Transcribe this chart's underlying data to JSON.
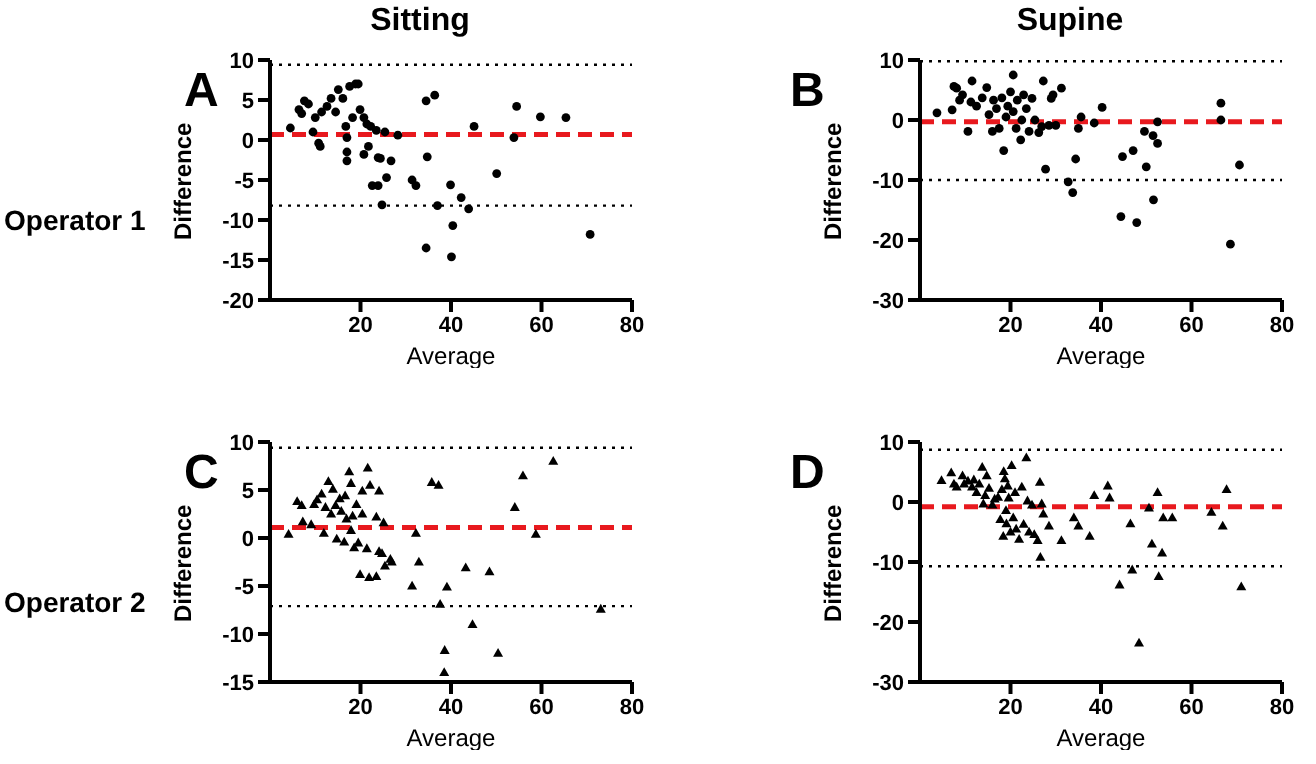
{
  "chart_data": [
    {
      "type": "scatter",
      "title": "Sitting",
      "subtitle": "A",
      "annotations": [
        "Operator 1"
      ],
      "xlabel": "Average",
      "ylabel": "Difference",
      "marker": "circle",
      "color": "#000000",
      "x": [
        4.5,
        6.4,
        7,
        7.6,
        8.5,
        9.5,
        10.75,
        11.1,
        10,
        11.4,
        12.6,
        13.5,
        14.5,
        15.1,
        16.1,
        16.75,
        17,
        17,
        17,
        17.6,
        18.25,
        18.9,
        19.5,
        19.9,
        20.75,
        20.75,
        21.4,
        21.75,
        22.25,
        22.6,
        23.5,
        23.9,
        23.9,
        24.4,
        24.75,
        25.4,
        25.75,
        26.75,
        28.25,
        31.4,
        32.25,
        34.5,
        34.5,
        34.75,
        36.4,
        37,
        39.9,
        40.1,
        40.4,
        42.25,
        43.9,
        45.1,
        50.1,
        53.9,
        54.5,
        59.75,
        65.4,
        70.75
      ],
      "values": [
        1.5,
        3.8,
        3.3,
        4.9,
        4.5,
        1,
        -0.4,
        -0.8,
        2.8,
        3.5,
        4.2,
        5.2,
        3.5,
        6.3,
        5.2,
        1.7,
        0.3,
        -1.5,
        -2.6,
        6.7,
        2.8,
        7,
        7,
        3.8,
        2.8,
        -1.8,
        2,
        -0.8,
        1.7,
        -5.7,
        1.2,
        -2.2,
        -5.7,
        -2.3,
        -8.1,
        1,
        -4.7,
        -2.6,
        0.6,
        -5,
        -5.7,
        4.9,
        -13.5,
        -2.1,
        5.6,
        -8.2,
        -5.6,
        -14.6,
        -10.7,
        -7.2,
        -8.6,
        1.7,
        -4.2,
        0.3,
        4.2,
        2.9,
        2.8,
        -11.8
      ],
      "xlim": [
        0,
        80
      ],
      "xticks": [
        20,
        40,
        60,
        80
      ],
      "ylim": [
        -20,
        10
      ],
      "yticks": [
        -20,
        -15,
        -10,
        -5,
        0,
        5,
        10
      ],
      "ref_lines": [
        {
          "axis": "y",
          "value": 0.7,
          "color": "#e8191e",
          "line_style": "dashed"
        },
        {
          "axis": "y",
          "value": 9.4,
          "color": "#000000",
          "line_style": "dotted"
        },
        {
          "axis": "y",
          "value": -8.2,
          "color": "#000000",
          "line_style": "dotted"
        }
      ]
    },
    {
      "type": "scatter",
      "title": "Supine",
      "subtitle": "B",
      "xlabel": "Average",
      "ylabel": "Difference",
      "marker": "circle",
      "color": "#000000",
      "x": [
        3.75,
        7.1,
        7.5,
        8.1,
        8.75,
        9.4,
        10.6,
        11.5,
        11.25,
        12.5,
        13.75,
        14.75,
        15.25,
        16,
        16.25,
        16.9,
        17.5,
        18.1,
        18.5,
        19,
        19.4,
        20,
        20.6,
        20.6,
        21.25,
        21.5,
        22.25,
        22.5,
        22.9,
        23.5,
        24.1,
        24.75,
        25.4,
        26.25,
        26.9,
        27.25,
        27.75,
        28.5,
        29,
        29.4,
        30,
        31.25,
        32.75,
        33.75,
        34.4,
        35,
        35.6,
        38.5,
        40.25,
        44.4,
        44.75,
        47.1,
        47.9,
        49.6,
        50,
        51.5,
        51.6,
        52.5,
        52.5,
        66.5,
        66.5,
        68.6,
        70.6
      ],
      "values": [
        1.2,
        1.7,
        5.6,
        5.3,
        3.3,
        4.2,
        -1.9,
        6.5,
        3,
        2.3,
        3.7,
        5.4,
        0.9,
        -1.9,
        3.3,
        1.9,
        -1.4,
        3.7,
        -5.1,
        0.5,
        2.3,
        4.7,
        7.5,
        1.4,
        -1.4,
        3.3,
        -3.3,
        0,
        4.2,
        1.9,
        -1.9,
        3.6,
        0,
        -2.1,
        -1.1,
        6.5,
        -8.2,
        -0.9,
        3.6,
        4.2,
        -0.9,
        5.3,
        -10.3,
        -12.1,
        -6.5,
        -1.4,
        0.5,
        -0.5,
        2.1,
        -16.1,
        -6.1,
        -5.1,
        -17.1,
        -1.9,
        -7.8,
        -2.6,
        -13.3,
        -3.9,
        -0.3,
        2.8,
        0,
        -20.7,
        -7.5
      ],
      "xlim": [
        0,
        80
      ],
      "xticks": [
        20,
        40,
        60,
        80
      ],
      "ylim": [
        -30,
        10
      ],
      "yticks": [
        -30,
        -20,
        -10,
        0,
        10
      ],
      "ref_lines": [
        {
          "axis": "y",
          "value": -0.3,
          "color": "#e8191e",
          "line_style": "dashed"
        },
        {
          "axis": "y",
          "value": 9.8,
          "color": "#000000",
          "line_style": "dotted"
        },
        {
          "axis": "y",
          "value": -10,
          "color": "#000000",
          "line_style": "dotted"
        }
      ]
    },
    {
      "type": "scatter",
      "subtitle": "C",
      "annotations": [
        "Operator 2"
      ],
      "xlabel": "Average",
      "ylabel": "Difference",
      "marker": "triangle",
      "color": "#000000",
      "x": [
        4.1,
        6,
        7,
        7.25,
        9.1,
        9.75,
        10.4,
        11.4,
        11.9,
        12.25,
        12.9,
        13.5,
        13.9,
        14.5,
        14.75,
        15.4,
        15.75,
        16.4,
        16.6,
        16.9,
        17.5,
        17.9,
        17.9,
        18.25,
        18.6,
        19.1,
        19.5,
        19.9,
        20.4,
        20.4,
        21.4,
        21.6,
        21.9,
        22.1,
        23.5,
        23.5,
        24.1,
        24.1,
        24.75,
        25.1,
        25.4,
        26.6,
        26.9,
        31.4,
        32.25,
        32.9,
        35.75,
        37.25,
        37.6,
        38.6,
        38.5,
        39.1,
        43.25,
        44.75,
        48.5,
        50.4,
        54.1,
        55.9,
        58.75,
        62.6,
        73.1
      ],
      "values": [
        0.4,
        3.8,
        3.4,
        1.7,
        1.4,
        3.5,
        4,
        4.6,
        0.5,
        3.2,
        5.9,
        2.5,
        5.1,
        3.4,
        -0.1,
        4.1,
        2.8,
        -0.4,
        4.4,
        2,
        6.9,
        5.7,
        0.8,
        2.3,
        -1,
        3.5,
        -0.5,
        -3.8,
        4.9,
        2.5,
        -1.1,
        7.3,
        -4.1,
        5.5,
        -4,
        2.2,
        4.9,
        -1.4,
        -1.6,
        1.6,
        -2.9,
        -2.2,
        -2.5,
        -5,
        0.5,
        -2.5,
        5.8,
        5.5,
        -6.9,
        -11.7,
        -14,
        -5.1,
        -3.1,
        -9,
        -3.5,
        -12,
        3.2,
        6.5,
        0.4,
        8,
        -7.4
      ],
      "xlim": [
        0,
        80
      ],
      "xticks": [
        20,
        40,
        60,
        80
      ],
      "ylim": [
        -15,
        10
      ],
      "yticks": [
        -15,
        -10,
        -5,
        0,
        5,
        10
      ],
      "ref_lines": [
        {
          "axis": "y",
          "value": 1.1,
          "color": "#e8191e",
          "line_style": "dashed"
        },
        {
          "axis": "y",
          "value": 9.4,
          "color": "#000000",
          "line_style": "dotted"
        },
        {
          "axis": "y",
          "value": -7.1,
          "color": "#000000",
          "line_style": "dotted"
        }
      ]
    },
    {
      "type": "scatter",
      "subtitle": "D",
      "xlabel": "Average",
      "ylabel": "Difference",
      "marker": "triangle",
      "color": "#000000",
      "x": [
        4.75,
        6.9,
        7.5,
        8.1,
        9.4,
        9.75,
        10.6,
        11.5,
        11.9,
        12.5,
        13.1,
        13.75,
        14,
        14.4,
        14.75,
        15.25,
        16,
        16.5,
        17.25,
        17.75,
        18.1,
        18.4,
        18.5,
        18.75,
        19,
        19.1,
        19.4,
        19.6,
        20,
        20.25,
        20.6,
        21,
        21.25,
        21.9,
        22.5,
        22.9,
        23.5,
        23.75,
        24.1,
        24.75,
        25.25,
        26,
        26.5,
        26.6,
        26.9,
        27.25,
        28.5,
        31.25,
        34,
        35,
        37.5,
        38.5,
        41.5,
        41.9,
        44.1,
        46.5,
        46.9,
        48.4,
        50.6,
        51.25,
        52.5,
        52.75,
        53.5,
        53.75,
        55.75,
        64.4,
        66.9,
        67.75,
        71
      ],
      "values": [
        3.6,
        4.9,
        3,
        2.5,
        4.4,
        3,
        3.5,
        2.5,
        3.7,
        1.6,
        3,
        5.8,
        -0.3,
        1.1,
        4.4,
        2.3,
        -0.5,
        0.5,
        0.8,
        -2.9,
        2.1,
        -5.7,
        5.1,
        3.9,
        -1.4,
        -3.6,
        2.7,
        0.7,
        -5,
        6.1,
        -2.6,
        1.6,
        -4.5,
        -6.2,
        2.5,
        -3.7,
        7.4,
        0.2,
        -5,
        -0.5,
        -5.4,
        -6.4,
        3.3,
        -9.2,
        -0.3,
        -2,
        -4,
        -6.4,
        -2.6,
        -4,
        -5.7,
        1.1,
        2.7,
        0.7,
        -13.8,
        -3.6,
        -11.3,
        -23.5,
        -1,
        -7,
        1.6,
        -12.4,
        -8.5,
        -2.6,
        -2.6,
        -1.7,
        -4,
        2.1,
        -14.1
      ],
      "xlim": [
        0,
        80
      ],
      "xticks": [
        20,
        40,
        60,
        80
      ],
      "ylim": [
        -30,
        10
      ],
      "yticks": [
        -30,
        -20,
        -10,
        0,
        10
      ],
      "ref_lines": [
        {
          "axis": "y",
          "value": -0.8,
          "color": "#e8191e",
          "line_style": "dashed"
        },
        {
          "axis": "y",
          "value": 8.7,
          "color": "#000000",
          "line_style": "dotted"
        },
        {
          "axis": "y",
          "value": -10.7,
          "color": "#000000",
          "line_style": "dotted"
        }
      ]
    }
  ]
}
